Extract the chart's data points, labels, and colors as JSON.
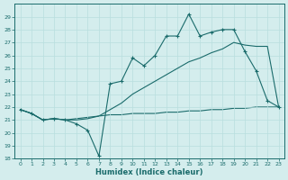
{
  "xlabel": "Humidex (Indice chaleur)",
  "background_color": "#d4eded",
  "line_color": "#1a6b6b",
  "grid_color": "#b8dede",
  "xlim": [
    -0.5,
    23.5
  ],
  "ylim": [
    18,
    30
  ],
  "xticks": [
    0,
    1,
    2,
    3,
    4,
    5,
    6,
    7,
    8,
    9,
    10,
    11,
    12,
    13,
    14,
    15,
    16,
    17,
    18,
    19,
    20,
    21,
    22,
    23
  ],
  "yticks": [
    18,
    19,
    20,
    21,
    22,
    23,
    24,
    25,
    26,
    27,
    28,
    29
  ],
  "x_hours": [
    0,
    1,
    2,
    3,
    4,
    5,
    6,
    7,
    8,
    9,
    10,
    11,
    12,
    13,
    14,
    15,
    16,
    17,
    18,
    19,
    20,
    21,
    22,
    23
  ],
  "curve_jagged": [
    21.8,
    21.5,
    21.0,
    21.1,
    21.0,
    20.7,
    20.2,
    18.2,
    23.8,
    24.0,
    25.8,
    25.2,
    26.0,
    27.5,
    27.5,
    29.2,
    27.5,
    27.8,
    28.0,
    28.0,
    26.3,
    24.8,
    22.5,
    22.0
  ],
  "curve_diagonal": [
    21.8,
    21.5,
    21.0,
    21.1,
    21.0,
    21.0,
    21.1,
    21.3,
    21.8,
    22.3,
    23.0,
    23.5,
    24.0,
    24.5,
    25.0,
    25.5,
    25.8,
    26.2,
    26.5,
    27.0,
    26.8,
    26.7,
    26.7,
    22.0
  ],
  "curve_flat": [
    21.8,
    21.5,
    21.0,
    21.1,
    21.0,
    21.1,
    21.2,
    21.3,
    21.4,
    21.4,
    21.5,
    21.5,
    21.5,
    21.6,
    21.6,
    21.7,
    21.7,
    21.8,
    21.8,
    21.9,
    21.9,
    22.0,
    22.0,
    22.0
  ]
}
